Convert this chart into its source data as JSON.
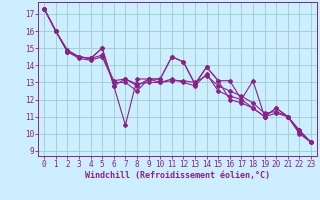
{
  "xlabel": "Windchill (Refroidissement éolien,°C)",
  "bg_color": "#cceeff",
  "line_color": "#882288",
  "grid_color": "#99cccc",
  "xlim": [
    -0.5,
    23.5
  ],
  "ylim": [
    8.7,
    17.7
  ],
  "xticks": [
    0,
    1,
    2,
    3,
    4,
    5,
    6,
    7,
    8,
    9,
    10,
    11,
    12,
    13,
    14,
    15,
    16,
    17,
    18,
    19,
    20,
    21,
    22,
    23
  ],
  "yticks": [
    9,
    10,
    11,
    12,
    13,
    14,
    15,
    16,
    17
  ],
  "series": [
    [
      17.3,
      16.0,
      14.8,
      14.5,
      14.4,
      15.0,
      12.8,
      13.2,
      12.8,
      13.2,
      13.2,
      14.5,
      14.2,
      12.9,
      13.9,
      13.1,
      13.1,
      12.0,
      13.1,
      11.0,
      11.5,
      11.0,
      10.2,
      9.5
    ],
    [
      17.3,
      16.0,
      14.8,
      14.5,
      14.4,
      15.0,
      12.8,
      10.5,
      13.2,
      13.2,
      13.2,
      14.5,
      14.2,
      12.9,
      13.9,
      13.1,
      12.0,
      11.8,
      11.5,
      11.0,
      11.5,
      11.0,
      10.2,
      9.5
    ],
    [
      17.3,
      16.0,
      14.8,
      14.4,
      14.3,
      14.5,
      13.0,
      13.0,
      12.5,
      13.2,
      13.0,
      13.2,
      13.0,
      12.8,
      13.5,
      12.5,
      12.2,
      12.0,
      11.5,
      11.0,
      11.2,
      11.0,
      10.0,
      9.5
    ],
    [
      17.3,
      16.0,
      14.9,
      14.5,
      14.4,
      14.6,
      13.1,
      13.2,
      12.9,
      13.0,
      13.0,
      13.1,
      13.1,
      13.0,
      13.4,
      12.8,
      12.5,
      12.2,
      11.8,
      11.2,
      11.3,
      11.0,
      10.1,
      9.5
    ]
  ]
}
